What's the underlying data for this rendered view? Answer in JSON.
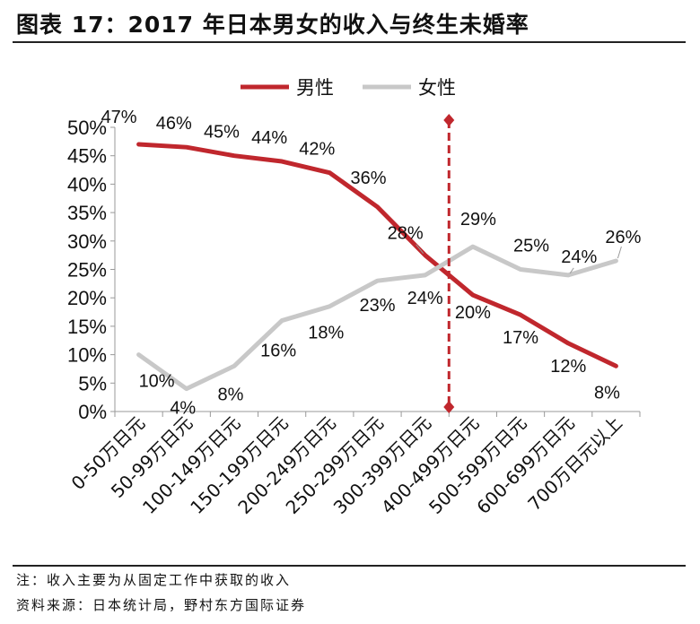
{
  "figure_title": "图表 17：2017 年日本男女的收入与终生未婚率",
  "notes": {
    "note": "注：收入主要为从固定工作中获取的收入",
    "source": "资料来源：日本统计局，野村东方国际证券"
  },
  "colors": {
    "male": "#c0272d",
    "female": "#c8c8c8",
    "marker": "#c0272d"
  },
  "chart_data": {
    "type": "line",
    "title": "",
    "xlabel": "",
    "ylabel": "",
    "ylim": [
      0,
      50
    ],
    "yticks": [
      "0%",
      "5%",
      "10%",
      "15%",
      "20%",
      "25%",
      "30%",
      "35%",
      "40%",
      "45%",
      "50%"
    ],
    "legend_position": "top",
    "categories": [
      "0-50万日元",
      "50-99万日元",
      "100-149万日元",
      "150-199万日元",
      "200-249万日元",
      "250-299万日元",
      "300-399万日元",
      "400-499万日元",
      "500-599万日元",
      "600-699万日元",
      "700万日元以上"
    ],
    "series": [
      {
        "name": "男性",
        "values": [
          47,
          46.5,
          45,
          44,
          42,
          36,
          27.5,
          20.5,
          17,
          12,
          8
        ],
        "labels": [
          "47%",
          "46%",
          "45%",
          "44%",
          "42%",
          "36%",
          "28%",
          "20%",
          "17%",
          "12%",
          "8%"
        ]
      },
      {
        "name": "女性",
        "values": [
          10,
          4,
          8,
          16,
          18.5,
          23,
          24,
          29,
          25,
          24,
          26.5
        ],
        "labels": [
          "10%",
          "4%",
          "8%",
          "16%",
          "18%",
          "23%",
          "24%",
          "29%",
          "25%",
          "24%",
          "26%"
        ]
      }
    ],
    "vertical_marker_between": [
      6,
      7
    ]
  }
}
